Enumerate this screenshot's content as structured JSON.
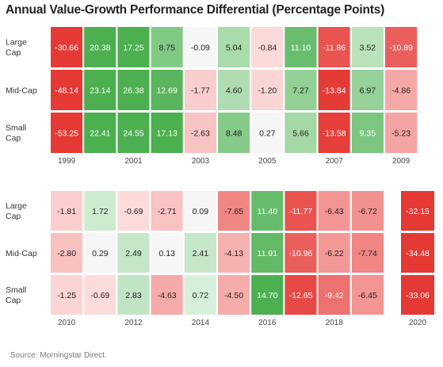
{
  "title": "Annual Value-Growth Performance Differential (Percentage Points)",
  "source": "Source: Morningstar Direct.",
  "colors": {
    "green_strong": "#4caf50",
    "green_light": "#dff3e1",
    "red_strong": "#e53935",
    "red_light": "#fde4e4",
    "neutral": "#f6f6f6"
  },
  "chart_data": [
    {
      "type": "heatmap",
      "title": "Annual Value-Growth Performance Differential (Percentage Points)",
      "rows": [
        "Large Cap",
        "Mid-Cap",
        "Small Cap"
      ],
      "columns": [
        "1999",
        "2000",
        "2001",
        "2002",
        "2003",
        "2004",
        "2005",
        "2006",
        "2007",
        "2008",
        "2009"
      ],
      "tick_labels": [
        "1999",
        "2001",
        "2003",
        "2005",
        "2007",
        "2009"
      ],
      "values": [
        [
          -30.66,
          20.38,
          17.25,
          8.75,
          -0.09,
          5.04,
          -0.84,
          11.1,
          -11.86,
          3.52,
          -10.89
        ],
        [
          -48.14,
          23.14,
          26.38,
          12.69,
          -1.77,
          4.6,
          -1.2,
          7.27,
          -13.84,
          6.97,
          -4.86
        ],
        [
          -53.25,
          22.41,
          24.55,
          17.13,
          -2.63,
          8.48,
          0.27,
          5.66,
          -13.58,
          9.35,
          -5.23
        ]
      ]
    },
    {
      "type": "heatmap",
      "rows": [
        "Large Cap",
        "Mid-Cap",
        "Small Cap"
      ],
      "columns": [
        "2010",
        "2011",
        "2012",
        "2013",
        "2014",
        "2015",
        "2016",
        "2017",
        "2018",
        "2019"
      ],
      "tick_labels": [
        "2010",
        "2012",
        "2014",
        "2016",
        "2018"
      ],
      "values": [
        [
          -1.81,
          1.72,
          -0.69,
          -2.71,
          0.09,
          -7.65,
          11.4,
          -11.77,
          -6.43,
          -6.72
        ],
        [
          -2.8,
          0.29,
          2.49,
          0.13,
          2.41,
          -4.13,
          11.91,
          -10.96,
          -6.22,
          -7.74
        ],
        [
          -1.25,
          -0.69,
          2.83,
          -4.63,
          0.72,
          -4.5,
          14.7,
          -12.65,
          -9.42,
          -6.45
        ]
      ]
    },
    {
      "type": "heatmap",
      "rows": [
        "Large Cap",
        "Mid-Cap",
        "Small Cap"
      ],
      "columns": [
        "2020"
      ],
      "tick_labels": [
        "2020"
      ],
      "values": [
        [
          -32.15
        ],
        [
          -34.48
        ],
        [
          -33.06
        ]
      ]
    }
  ]
}
